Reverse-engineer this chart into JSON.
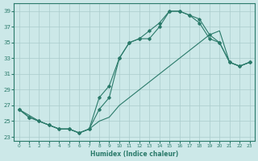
{
  "xlabel": "Humidex (Indice chaleur)",
  "bg_color": "#cce8e8",
  "grid_color": "#aacccc",
  "line_color": "#2a7a6a",
  "xlim": [
    -0.5,
    23.5
  ],
  "ylim": [
    22.5,
    40.0
  ],
  "xticks": [
    0,
    1,
    2,
    3,
    4,
    5,
    6,
    7,
    8,
    9,
    10,
    11,
    12,
    13,
    14,
    15,
    16,
    17,
    18,
    19,
    20,
    21,
    22,
    23
  ],
  "yticks": [
    23,
    25,
    27,
    29,
    31,
    33,
    35,
    37,
    39
  ],
  "line1_x": [
    0,
    1,
    2,
    3,
    4,
    5,
    6,
    7,
    8,
    9,
    10,
    11,
    12,
    13,
    14,
    15,
    16,
    17,
    18,
    19,
    20,
    21,
    22,
    23
  ],
  "line1_y": [
    26.5,
    25.5,
    25.0,
    24.5,
    24.0,
    24.0,
    23.5,
    24.0,
    26.5,
    28.0,
    33.0,
    35.0,
    35.5,
    35.5,
    37.0,
    39.0,
    39.0,
    38.5,
    38.0,
    36.0,
    35.0,
    32.5,
    32.0,
    32.5
  ],
  "line2_x": [
    0,
    1,
    2,
    3,
    4,
    5,
    6,
    7,
    8,
    9,
    10,
    11,
    12,
    13,
    14,
    15,
    16,
    17,
    18,
    19,
    20,
    21,
    22,
    23
  ],
  "line2_y": [
    26.5,
    25.5,
    25.0,
    24.5,
    24.0,
    24.0,
    23.5,
    24.0,
    28.0,
    29.5,
    33.0,
    35.0,
    35.5,
    36.5,
    37.5,
    39.0,
    39.0,
    38.5,
    37.5,
    35.5,
    35.0,
    32.5,
    32.0,
    32.5
  ],
  "line3_x": [
    0,
    2,
    3,
    4,
    5,
    6,
    7,
    8,
    9,
    10,
    11,
    12,
    13,
    14,
    15,
    16,
    17,
    18,
    19,
    20,
    21,
    22,
    23
  ],
  "line3_y": [
    26.5,
    25.0,
    24.5,
    24.0,
    24.0,
    23.5,
    24.0,
    25.0,
    25.5,
    27.0,
    28.0,
    29.0,
    30.0,
    31.0,
    32.0,
    33.0,
    34.0,
    35.0,
    36.0,
    36.5,
    32.5,
    32.0,
    32.5
  ]
}
